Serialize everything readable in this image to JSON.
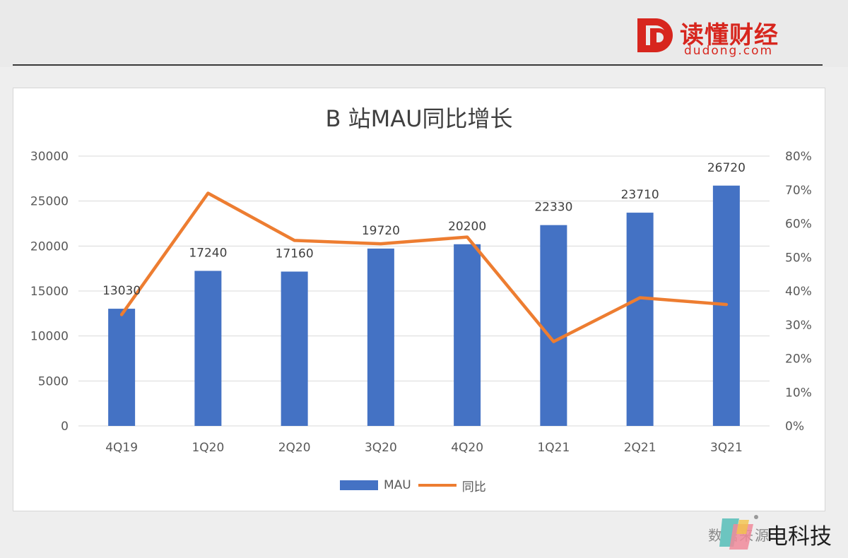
{
  "brand": {
    "name": "读懂财经",
    "url": "dudong.com",
    "color": "#d7261e",
    "logo_icon": "dd-logo-icon"
  },
  "chart_data": {
    "type": "bar",
    "title": "B 站MAU同比增长",
    "xlabel": "",
    "ylabel": "",
    "categories": [
      "4Q19",
      "1Q20",
      "2Q20",
      "3Q20",
      "4Q20",
      "1Q21",
      "2Q21",
      "3Q21"
    ],
    "series": [
      {
        "name": "MAU",
        "type": "bar",
        "axis": "left",
        "color": "#4472c4",
        "values": [
          13030,
          17240,
          17160,
          19720,
          20200,
          22330,
          23710,
          26720
        ],
        "data_labels": [
          "13030",
          "17240",
          "17160",
          "19720",
          "20200",
          "22330",
          "23710",
          "26720"
        ]
      },
      {
        "name": "同比",
        "type": "line",
        "axis": "right",
        "color": "#ed7d31",
        "values": [
          0.33,
          0.69,
          0.55,
          0.54,
          0.56,
          0.25,
          0.38,
          0.36
        ]
      }
    ],
    "ylim": [
      0,
      30000
    ],
    "y_ticks": [
      0,
      5000,
      10000,
      15000,
      20000,
      25000,
      30000
    ],
    "y_tick_labels": [
      "0",
      "5000",
      "10000",
      "15000",
      "20000",
      "25000",
      "30000"
    ],
    "y2lim": [
      0,
      0.8
    ],
    "y2_ticks": [
      0,
      0.1,
      0.2,
      0.3,
      0.4,
      0.5,
      0.6,
      0.7,
      0.8
    ],
    "y2_tick_labels": [
      "0%",
      "10%",
      "20%",
      "30%",
      "40%",
      "50%",
      "60%",
      "70%",
      "80%"
    ],
    "grid": true,
    "legend_position": "bottom"
  },
  "legend": {
    "bar_label": "MAU",
    "line_label": "同比"
  },
  "footer": {
    "source_text": "数据来源",
    "watermark_text": "电科技",
    "watermark_icon": "electric-tech-logo-icon"
  }
}
